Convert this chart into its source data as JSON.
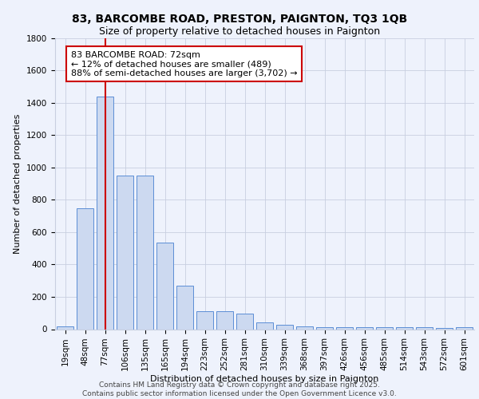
{
  "title_line1": "83, BARCOMBE ROAD, PRESTON, PAIGNTON, TQ3 1QB",
  "title_line2": "Size of property relative to detached houses in Paignton",
  "xlabel": "Distribution of detached houses by size in Paignton",
  "ylabel": "Number of detached properties",
  "categories": [
    "19sqm",
    "48sqm",
    "77sqm",
    "106sqm",
    "135sqm",
    "165sqm",
    "194sqm",
    "223sqm",
    "252sqm",
    "281sqm",
    "310sqm",
    "339sqm",
    "368sqm",
    "397sqm",
    "426sqm",
    "456sqm",
    "485sqm",
    "514sqm",
    "543sqm",
    "572sqm",
    "601sqm"
  ],
  "values": [
    18,
    745,
    1440,
    950,
    950,
    535,
    270,
    110,
    110,
    95,
    40,
    27,
    15,
    12,
    12,
    10,
    12,
    10,
    12,
    8,
    12
  ],
  "bar_color": "#ccd9f0",
  "bar_edge_color": "#5b8ed6",
  "vline_x_index": 2,
  "vline_color": "#cc0000",
  "annotation_text": "83 BARCOMBE ROAD: 72sqm\n← 12% of detached houses are smaller (489)\n88% of semi-detached houses are larger (3,702) →",
  "annotation_box_edge": "#cc0000",
  "ylim": [
    0,
    1800
  ],
  "yticks": [
    0,
    200,
    400,
    600,
    800,
    1000,
    1200,
    1400,
    1600,
    1800
  ],
  "footer_text": "Contains HM Land Registry data © Crown copyright and database right 2025.\nContains public sector information licensed under the Open Government Licence v3.0.",
  "bg_color": "#eef2fc",
  "grid_color": "#c8cfe0",
  "title_fontsize": 10,
  "subtitle_fontsize": 9,
  "axis_label_fontsize": 8,
  "tick_fontsize": 7.5,
  "annotation_fontsize": 8,
  "footer_fontsize": 6.5
}
